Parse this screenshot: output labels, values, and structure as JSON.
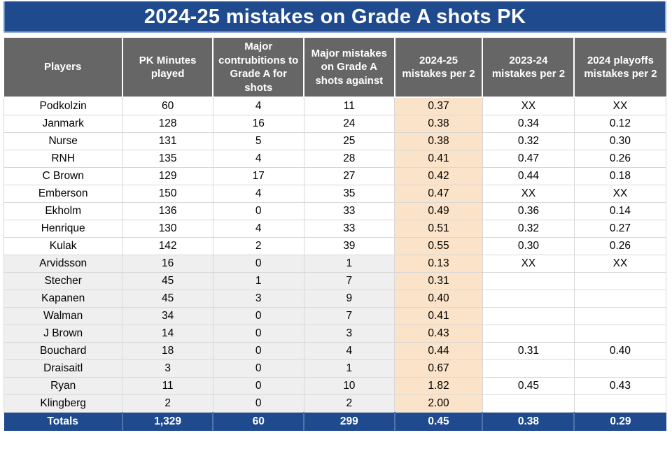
{
  "colors": {
    "title_bar_bg": "#1F4A8E",
    "header_bg": "#666666",
    "highlight_column_bg": "#FAE3C8",
    "shaded_row_bg": "#EFEFEF",
    "totals_row_bg": "#1F4A8E",
    "grid_line": "#D8D8D8",
    "header_text": "#FFFFFF",
    "body_text": "#000000"
  },
  "chart_data": {
    "type": "table",
    "title": "2024-25 mistakes on Grade A shots PK",
    "columns": [
      "Players",
      "PK Minutes played",
      "Major contrubitions to Grade A for shots",
      "Major mistakes on Grade A shots against",
      "2024-25 mistakes per 2",
      "2023-24 mistakes per 2",
      "2024 playoffs mistakes per 2"
    ],
    "rows": [
      [
        "Podkolzin",
        "60",
        "4",
        "11",
        "0.37",
        "XX",
        "XX"
      ],
      [
        "Janmark",
        "128",
        "16",
        "24",
        "0.38",
        "0.34",
        "0.12"
      ],
      [
        "Nurse",
        "131",
        "5",
        "25",
        "0.38",
        "0.32",
        "0.30"
      ],
      [
        "RNH",
        "135",
        "4",
        "28",
        "0.41",
        "0.47",
        "0.26"
      ],
      [
        "C Brown",
        "129",
        "17",
        "27",
        "0.42",
        "0.44",
        "0.18"
      ],
      [
        "Emberson",
        "150",
        "4",
        "35",
        "0.47",
        "XX",
        "XX"
      ],
      [
        "Ekholm",
        "136",
        "0",
        "33",
        "0.49",
        "0.36",
        "0.14"
      ],
      [
        "Henrique",
        "130",
        "4",
        "33",
        "0.51",
        "0.32",
        "0.27"
      ],
      [
        "Kulak",
        "142",
        "2",
        "39",
        "0.55",
        "0.30",
        "0.26"
      ],
      [
        "Arvidsson",
        "16",
        "0",
        "1",
        "0.13",
        "XX",
        "XX"
      ],
      [
        "Stecher",
        "45",
        "1",
        "7",
        "0.31",
        "",
        ""
      ],
      [
        "Kapanen",
        "45",
        "3",
        "9",
        "0.40",
        "",
        ""
      ],
      [
        "Walman",
        "34",
        "0",
        "7",
        "0.41",
        "",
        ""
      ],
      [
        "J Brown",
        "14",
        "0",
        "3",
        "0.43",
        "",
        ""
      ],
      [
        "Bouchard",
        "18",
        "0",
        "4",
        "0.44",
        "0.31",
        "0.40"
      ],
      [
        "Draisaitl",
        "3",
        "0",
        "1",
        "0.67",
        "",
        ""
      ],
      [
        "Ryan",
        "11",
        "0",
        "10",
        "1.82",
        "0.45",
        "0.43"
      ],
      [
        "Klingberg",
        "2",
        "0",
        "2",
        "2.00",
        "",
        ""
      ]
    ],
    "totals": [
      "Totals",
      "1,329",
      "60",
      "299",
      "0.45",
      "0.38",
      "0.29"
    ],
    "highlight_column": "2024-25 mistakes per 2",
    "highlight_column_index": 4,
    "shaded_rows": [
      "Arvidsson",
      "Stecher",
      "Kapanen",
      "Walman",
      "J Brown",
      "Bouchard",
      "Draisaitl",
      "Ryan",
      "Klingberg"
    ],
    "shaded_columns_when_row_shaded": [
      0,
      1,
      2,
      3
    ],
    "missing_value_marker": "XX",
    "layout": {
      "grid": true,
      "legend": false
    }
  }
}
